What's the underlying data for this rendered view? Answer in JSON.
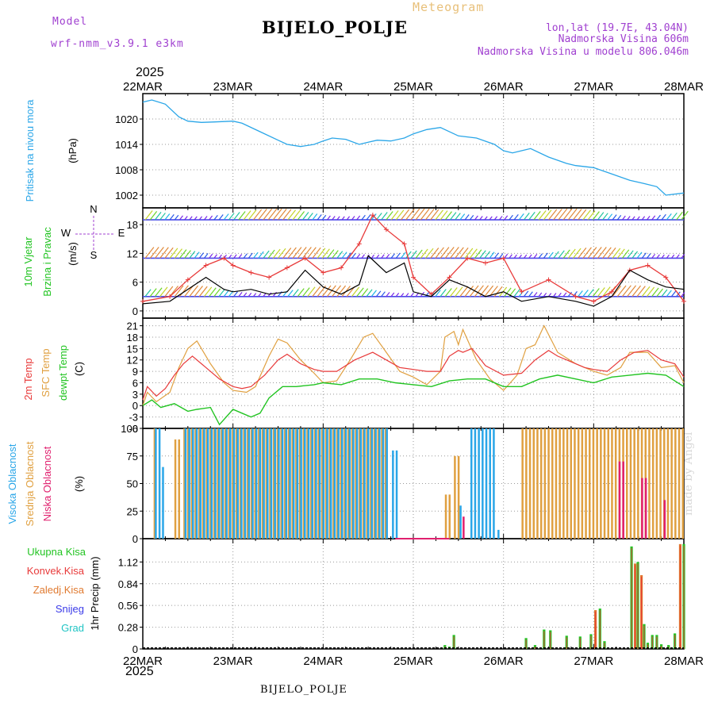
{
  "header": {
    "model_label": "Model",
    "model_value": "wrf-nmm_v3.9.1 e3km",
    "title": "Meteogram",
    "station": "BIJELO_POLJE",
    "lonlat": "lon,lat (19.7E, 43.04N)",
    "altitude": "Nadmorska Visina 606m",
    "model_altitude": "Nadmorska Visina u modelu 806.046m",
    "year": "2025",
    "footer_station": "BIJELO_POLJE",
    "credit": "made by Angel"
  },
  "colors": {
    "pressure": "#2aa6e8",
    "wind_speed": "#000000",
    "gust": "#e83a3a",
    "temp2m": "#e83a3a",
    "sfc_temp": "#e0a040",
    "dewpoint": "#22c422",
    "cloud_high": "#2aa6e8",
    "cloud_mid": "#e0a040",
    "cloud_low": "#e0206e",
    "precip_total": "#22c422",
    "precip_conv": "#e83a3a",
    "precip_grid": "#e07a30",
    "snow": "#3a3ae8",
    "hail": "#20c4c4",
    "purple": "#a040d0"
  },
  "chart_data": [
    {
      "id": "pressure",
      "type": "line",
      "ylabel": [
        "Pritisak na nivou mora",
        "(hPa)"
      ],
      "ylim": [
        999,
        1026
      ],
      "yticks": [
        1002,
        1008,
        1014,
        1020
      ],
      "x_days": [
        "22MAR",
        "23MAR",
        "24MAR",
        "25MAR",
        "26MAR",
        "27MAR",
        "28MAR"
      ],
      "series": [
        {
          "name": "MSLP",
          "x": [
            0,
            0.1,
            0.25,
            0.4,
            0.5,
            0.65,
            0.8,
            1.0,
            1.1,
            1.3,
            1.5,
            1.6,
            1.75,
            1.9,
            2.0,
            2.1,
            2.25,
            2.4,
            2.5,
            2.6,
            2.75,
            2.9,
            3.0,
            3.15,
            3.3,
            3.5,
            3.7,
            3.9,
            4.0,
            4.1,
            4.2,
            4.3,
            4.5,
            4.7,
            4.8,
            5.0,
            5.2,
            5.4,
            5.55,
            5.7,
            5.8,
            6.0
          ],
          "y": [
            1024,
            1024.5,
            1023.5,
            1020.5,
            1019.5,
            1019.2,
            1019.3,
            1019.5,
            1019,
            1017,
            1015,
            1014,
            1013.5,
            1014,
            1014.8,
            1015.5,
            1015.2,
            1014,
            1014.5,
            1015,
            1014.8,
            1015.5,
            1016.5,
            1017.5,
            1018,
            1016,
            1015.5,
            1014,
            1012.5,
            1012,
            1012.5,
            1013,
            1011,
            1009.5,
            1009,
            1008.5,
            1007,
            1005.5,
            1004.8,
            1004,
            1002,
            1002.5
          ]
        }
      ]
    },
    {
      "id": "wind",
      "type": "line",
      "ylabel": [
        "10m Vjetar",
        "Brzina i Pravac",
        "(m/s)"
      ],
      "ylim": [
        -1.5,
        21.5
      ],
      "yticks": [
        0,
        6,
        12,
        18
      ],
      "compass": {
        "n": "N",
        "s": "S",
        "w": "W",
        "e": "E"
      },
      "barb_levels": [
        3,
        11,
        19
      ],
      "series": [
        {
          "name": "speed",
          "x": [
            0,
            0.3,
            0.5,
            0.7,
            0.9,
            1.0,
            1.2,
            1.4,
            1.6,
            1.8,
            2.0,
            2.2,
            2.4,
            2.5,
            2.7,
            2.9,
            3.0,
            3.2,
            3.4,
            3.6,
            3.8,
            4.0,
            4.2,
            4.5,
            4.8,
            5.0,
            5.2,
            5.4,
            5.6,
            5.8,
            6.0
          ],
          "y": [
            1.5,
            2,
            4.5,
            7,
            4.5,
            4,
            4.5,
            3.5,
            4,
            8.5,
            5,
            3.5,
            5.5,
            11.5,
            8,
            10,
            4,
            3,
            6.5,
            5,
            3,
            4,
            2,
            3,
            2,
            1,
            3,
            8.5,
            6.5,
            5,
            4.5
          ]
        },
        {
          "name": "gust",
          "x": [
            0,
            0.3,
            0.5,
            0.7,
            0.9,
            1.0,
            1.2,
            1.4,
            1.6,
            1.8,
            2.0,
            2.2,
            2.4,
            2.55,
            2.7,
            2.9,
            3.0,
            3.2,
            3.4,
            3.6,
            3.8,
            4.0,
            4.2,
            4.5,
            4.8,
            5.0,
            5.2,
            5.4,
            5.6,
            5.8,
            6.0
          ],
          "y": [
            2,
            3,
            6.5,
            9.5,
            11,
            9.5,
            8,
            7,
            9,
            11,
            8,
            9,
            14,
            20,
            17,
            14,
            7,
            3.5,
            7,
            11,
            10,
            11,
            4,
            6.5,
            3,
            2,
            4,
            8.5,
            9.5,
            7,
            2
          ]
        }
      ]
    },
    {
      "id": "temp",
      "type": "line",
      "ylabel": [
        "2m Temp",
        "SFC Temp",
        "dewpt Temp",
        "(C)"
      ],
      "ylim": [
        -6,
        23
      ],
      "yticks": [
        -6,
        -3,
        0,
        3,
        6,
        9,
        12,
        15,
        18,
        21
      ],
      "series": [
        {
          "name": "2m Temp",
          "x": [
            0,
            0.05,
            0.15,
            0.25,
            0.35,
            0.45,
            0.55,
            0.7,
            0.85,
            1.0,
            1.1,
            1.2,
            1.35,
            1.5,
            1.6,
            1.75,
            1.9,
            2.0,
            2.15,
            2.35,
            2.55,
            2.7,
            2.85,
            3.0,
            3.15,
            3.3,
            3.4,
            3.5,
            3.55,
            3.65,
            3.8,
            4.0,
            4.2,
            4.35,
            4.5,
            4.6,
            4.75,
            4.9,
            5.0,
            5.15,
            5.3,
            5.45,
            5.6,
            5.75,
            5.9,
            6.0
          ],
          "y": [
            1.5,
            5,
            2.5,
            4.5,
            8,
            11,
            13,
            10,
            7,
            5,
            4.5,
            5,
            8,
            12,
            13.5,
            11,
            9.5,
            9,
            9,
            12,
            14,
            12,
            10,
            9.5,
            9,
            9,
            13,
            14.5,
            14,
            15,
            10.5,
            8,
            8.5,
            12,
            14.5,
            13,
            11.5,
            10,
            9.5,
            9,
            12,
            14,
            14.5,
            12,
            11,
            7.5
          ]
        },
        {
          "name": "SFC Temp",
          "x": [
            0,
            0.05,
            0.15,
            0.3,
            0.4,
            0.5,
            0.6,
            0.75,
            0.9,
            1.0,
            1.15,
            1.25,
            1.4,
            1.5,
            1.6,
            1.75,
            1.9,
            2.0,
            2.15,
            2.3,
            2.45,
            2.55,
            2.7,
            2.85,
            3.0,
            3.15,
            3.3,
            3.35,
            3.45,
            3.5,
            3.55,
            3.7,
            3.85,
            4.0,
            4.15,
            4.25,
            4.35,
            4.45,
            4.6,
            4.8,
            5.0,
            5.15,
            5.3,
            5.4,
            5.5,
            5.6,
            5.75,
            5.9,
            6.0
          ],
          "y": [
            0,
            3.5,
            1,
            3.5,
            10,
            15,
            17,
            11,
            6,
            4,
            3.5,
            5,
            13,
            17.5,
            16.5,
            12,
            8.5,
            6,
            6.5,
            12,
            18,
            19,
            14,
            9,
            7.5,
            5.5,
            9,
            18,
            19.5,
            16,
            20,
            12,
            7,
            4,
            8,
            15,
            16,
            21,
            14,
            11,
            9,
            8,
            10,
            14,
            14,
            14,
            10,
            10.5,
            6
          ]
        },
        {
          "name": "dewpt Temp",
          "x": [
            0,
            0.1,
            0.2,
            0.35,
            0.5,
            0.6,
            0.75,
            0.85,
            1.0,
            1.1,
            1.2,
            1.3,
            1.4,
            1.55,
            1.7,
            1.9,
            2.0,
            2.2,
            2.4,
            2.6,
            2.8,
            3.0,
            3.2,
            3.4,
            3.6,
            3.8,
            4.0,
            4.2,
            4.4,
            4.6,
            4.8,
            5.0,
            5.2,
            5.4,
            5.6,
            5.8,
            6.0
          ],
          "y": [
            0,
            1.5,
            -0.5,
            0.5,
            -1.5,
            -1,
            -0.5,
            -5,
            -1,
            -2,
            -3,
            -2,
            2,
            5,
            5,
            5.5,
            6,
            5.5,
            7,
            7,
            6,
            5.5,
            5,
            6.5,
            7,
            7,
            5,
            5,
            7,
            8,
            7,
            6,
            7.5,
            8,
            8.5,
            8,
            5
          ]
        }
      ]
    },
    {
      "id": "cloud",
      "type": "bar",
      "ylabel": [
        "Visoka Oblacnost",
        "Srednja Oblacnost",
        "Niska Oblacnost",
        "(%)"
      ],
      "ylim": [
        0,
        100
      ],
      "yticks": [
        0,
        25,
        50,
        75,
        100
      ],
      "legend": [
        "Visoka Oblacnost",
        "Srednja Oblacnost",
        "Niska Oblacnost"
      ],
      "high_runs": [
        [
          0.12,
          0.18,
          100
        ],
        [
          0.2,
          0.22,
          65
        ],
        [
          0.45,
          2.7,
          100
        ],
        [
          2.75,
          2.8,
          80
        ],
        [
          3.5,
          3.53,
          30
        ],
        [
          3.62,
          3.88,
          100
        ],
        [
          3.92,
          3.95,
          8
        ]
      ],
      "mid_runs": [
        [
          0.12,
          0.15,
          100
        ],
        [
          0.35,
          0.4,
          90
        ],
        [
          0.45,
          2.7,
          100
        ],
        [
          3.35,
          3.4,
          40
        ],
        [
          3.45,
          3.5,
          75
        ],
        [
          4.2,
          6.0,
          100
        ]
      ],
      "low_runs": [
        [
          3.52,
          3.55,
          20
        ],
        [
          5.25,
          5.3,
          70
        ],
        [
          5.5,
          5.55,
          55
        ],
        [
          5.75,
          5.78,
          35
        ]
      ]
    },
    {
      "id": "precip",
      "type": "bar",
      "ylabel": [
        "1hr Precip (mm)"
      ],
      "ylim": [
        0,
        1.42
      ],
      "yticks": [
        0,
        0.28,
        0.56,
        0.84,
        1.12
      ],
      "legend": [
        "Ukupna Kisa",
        "Konvek.Kisa",
        "Zaledj.Kisa",
        "Snijeg",
        "Grad"
      ],
      "x": [
        3.35,
        3.4,
        3.45,
        4.25,
        4.35,
        4.45,
        4.52,
        4.7,
        4.85,
        4.97,
        5.02,
        5.07,
        5.12,
        5.42,
        5.46,
        5.49,
        5.53,
        5.56,
        5.6,
        5.65,
        5.7,
        5.75,
        5.83,
        5.9,
        5.96,
        6.0
      ],
      "values": [
        0.05,
        0.03,
        0.18,
        0.14,
        0.05,
        0.25,
        0.24,
        0.17,
        0.16,
        0.19,
        0.5,
        0.52,
        0.1,
        1.32,
        1.1,
        1.12,
        0.95,
        0.32,
        0.08,
        0.18,
        0.18,
        0.06,
        0.05,
        0.2,
        1.35,
        1.35
      ]
    }
  ],
  "labels": {
    "cloud_axis": "(%)",
    "legend_precip": [
      "Ukupna Kisa",
      "Konvek.Kisa",
      "Zaledj.Kisa",
      "Snijeg",
      "Grad"
    ]
  }
}
